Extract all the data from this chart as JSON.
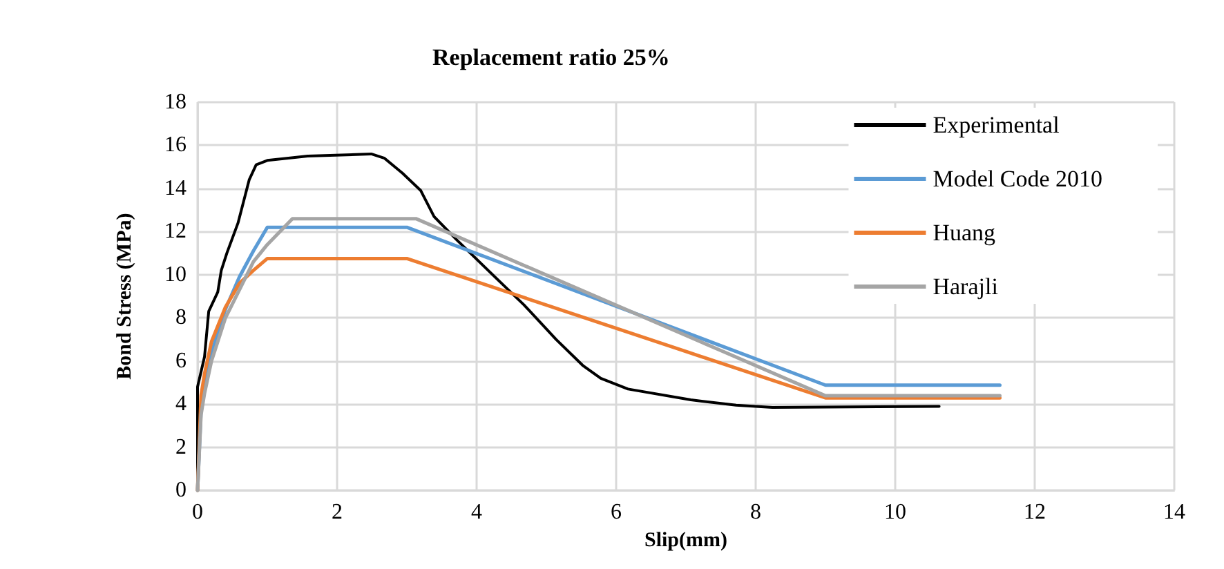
{
  "chart_data": {
    "type": "line",
    "title": "Replacement ratio 25%",
    "xlabel": "Slip(mm)",
    "ylabel": "Bond Stress (MPa)",
    "xlim": [
      0,
      14
    ],
    "xticks": [
      0,
      2,
      4,
      6,
      8,
      10,
      12,
      14
    ],
    "ylim": [
      0,
      18
    ],
    "yticks": [
      0,
      2,
      4,
      6,
      8,
      10,
      12,
      14,
      16,
      18
    ],
    "grid": true,
    "legend": "top right",
    "marker": "none",
    "line_style": "solid",
    "series": [
      {
        "name": "Experimental",
        "color": "#000000",
        "x": [
          0,
          0,
          0.1,
          0.16,
          0.29,
          0.34,
          0.42,
          0.58,
          0.74,
          0.84,
          1.0,
          1.58,
          2.49,
          2.68,
          2.94,
          3.2,
          3.39,
          3.72,
          4.23,
          4.68,
          5.14,
          5.52,
          5.78,
          6.17,
          7.07,
          7.72,
          8.24,
          10.63
        ],
        "values": [
          0,
          4.8,
          6.2,
          8.3,
          9.2,
          10.2,
          11.0,
          12.4,
          14.4,
          15.1,
          15.3,
          15.5,
          15.6,
          15.4,
          14.7,
          13.9,
          12.7,
          11.6,
          10.0,
          8.6,
          7.0,
          5.8,
          5.2,
          4.7,
          4.2,
          3.95,
          3.85,
          3.9
        ]
      },
      {
        "name": "Model Code 2010",
        "color": "#5b9bd5",
        "x": [
          0,
          0.05,
          0.1,
          0.2,
          0.4,
          0.6,
          0.8,
          1.0,
          3.0,
          9.0,
          11.5
        ],
        "values": [
          0,
          3.7,
          4.9,
          6.4,
          8.4,
          9.9,
          11.1,
          12.2,
          12.2,
          4.88,
          4.88
        ]
      },
      {
        "name": "Huang",
        "color": "#ed7d31",
        "x": [
          0,
          0.05,
          0.1,
          0.2,
          0.4,
          0.6,
          0.8,
          1.0,
          3.0,
          9.0,
          11.5
        ],
        "values": [
          0,
          4.4,
          5.4,
          6.9,
          8.5,
          9.6,
          10.2,
          10.75,
          10.75,
          4.29,
          4.29
        ]
      },
      {
        "name": "Harajli",
        "color": "#a5a5a5",
        "x": [
          0,
          0.05,
          0.1,
          0.2,
          0.4,
          0.8,
          1.0,
          1.36,
          3.13,
          9.0,
          11.5
        ],
        "values": [
          0,
          3.5,
          4.5,
          6.0,
          8.0,
          10.6,
          11.4,
          12.6,
          12.6,
          4.39,
          4.39
        ]
      }
    ]
  }
}
